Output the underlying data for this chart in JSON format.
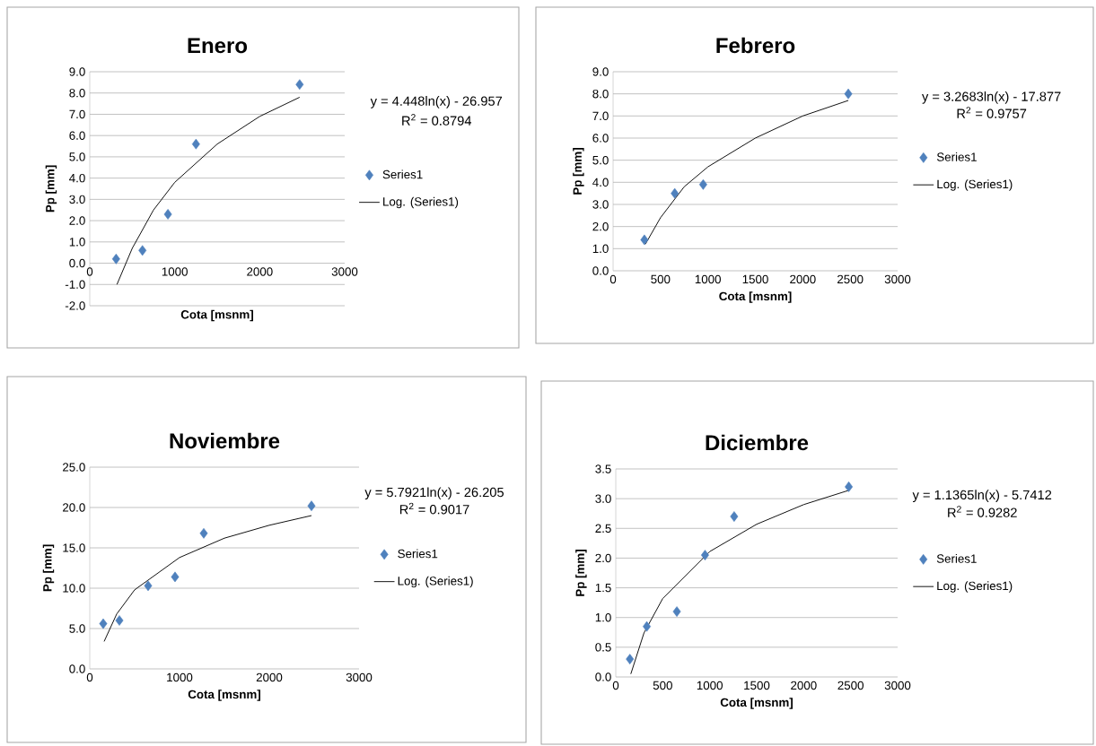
{
  "chart_data": [
    {
      "type": "scatter",
      "title": "Enero",
      "xlabel": "Cota [msnm]",
      "ylabel": "Pp [mm]",
      "xlim": [
        0,
        3000
      ],
      "ylim": [
        -2,
        9
      ],
      "xticks": [
        0,
        1000,
        2000,
        3000
      ],
      "yticks": [
        {
          "value": -2,
          "label": "-2.0"
        },
        {
          "value": -1,
          "label": "-1.0"
        },
        {
          "value": 0,
          "label": "0.0"
        },
        {
          "value": 1,
          "label": "1.0"
        },
        {
          "value": 2,
          "label": "2.0"
        },
        {
          "value": 3,
          "label": "3.0"
        },
        {
          "value": 4,
          "label": "4.0"
        },
        {
          "value": 5,
          "label": "5.0"
        },
        {
          "value": 6,
          "label": "6.0"
        },
        {
          "value": 7,
          "label": "7.0"
        },
        {
          "value": 8,
          "label": "8.0"
        },
        {
          "value": 9,
          "label": "9.0"
        }
      ],
      "grid": "y",
      "legend": "right",
      "annotations": [
        "y = 4.448ln(x) - 26.957",
        "R$^{2}$ = 0.8794"
      ],
      "series": [
        {
          "name": "Series1",
          "color": "#4f81bd",
          "marker": "diamond",
          "x": [
            310,
            620,
            920,
            1250,
            2470
          ],
          "values": [
            0.2,
            0.6,
            2.3,
            5.6,
            8.4
          ]
        },
        {
          "name": "Log. (Series1)",
          "type": "line",
          "color": "#000000",
          "marker": "none",
          "x": [
            320,
            500,
            750,
            1000,
            1500,
            2000,
            2470
          ],
          "values": [
            -1.0,
            0.7,
            2.5,
            3.8,
            5.6,
            6.9,
            7.8
          ]
        }
      ]
    },
    {
      "type": "scatter",
      "title": "Febrero",
      "xlabel": "Cota [msnm]",
      "ylabel": "Pp [mm]",
      "xlim": [
        0,
        3000
      ],
      "ylim": [
        0,
        9
      ],
      "xticks": [
        0,
        500,
        1000,
        1500,
        2000,
        2500,
        3000
      ],
      "yticks": [
        {
          "value": 0,
          "label": "0.0"
        },
        {
          "value": 1,
          "label": "1.0"
        },
        {
          "value": 2,
          "label": "2.0"
        },
        {
          "value": 3,
          "label": "3.0"
        },
        {
          "value": 4,
          "label": "4.0"
        },
        {
          "value": 5,
          "label": "5.0"
        },
        {
          "value": 6,
          "label": "6.0"
        },
        {
          "value": 7,
          "label": "7.0"
        },
        {
          "value": 8,
          "label": "8.0"
        },
        {
          "value": 9,
          "label": "9.0"
        }
      ],
      "grid": "y",
      "legend": "right",
      "annotations": [
        "y = 3.2683ln(x) - 17.877",
        "R$^{2}$ = 0.9757"
      ],
      "series": [
        {
          "name": "Series1",
          "color": "#4f81bd",
          "marker": "diamond",
          "x": [
            330,
            650,
            950,
            2480
          ],
          "values": [
            1.4,
            3.5,
            3.9,
            8.0
          ]
        },
        {
          "name": "Log. (Series1)",
          "type": "line",
          "color": "#000000",
          "marker": "none",
          "x": [
            340,
            500,
            750,
            1000,
            1500,
            2000,
            2480
          ],
          "values": [
            1.2,
            2.4,
            3.8,
            4.7,
            6.0,
            7.0,
            7.7
          ]
        }
      ]
    },
    {
      "type": "scatter",
      "title": "Noviembre",
      "xlabel": "Cota [msnm]",
      "ylabel": "Pp [mm]",
      "xlim": [
        0,
        3000
      ],
      "ylim": [
        0,
        25
      ],
      "xticks": [
        0,
        1000,
        2000,
        3000
      ],
      "yticks": [
        {
          "value": 0,
          "label": "0.0"
        },
        {
          "value": 5,
          "label": "5.0"
        },
        {
          "value": 10,
          "label": "10.0"
        },
        {
          "value": 15,
          "label": "15.0"
        },
        {
          "value": 20,
          "label": "20.0"
        },
        {
          "value": 25,
          "label": "25.0"
        }
      ],
      "grid": "y",
      "legend": "right",
      "annotations": [
        "y = 5.7921ln(x) - 26.205",
        "R$^{2}$ = 0.9017"
      ],
      "series": [
        {
          "name": "Series1",
          "color": "#4f81bd",
          "marker": "diamond",
          "x": [
            150,
            330,
            650,
            950,
            1270,
            2470
          ],
          "values": [
            5.6,
            6.0,
            10.3,
            11.4,
            16.8,
            20.2
          ]
        },
        {
          "name": "Log. (Series1)",
          "type": "line",
          "color": "#000000",
          "marker": "none",
          "x": [
            160,
            300,
            500,
            1000,
            1500,
            2000,
            2470
          ],
          "values": [
            3.4,
            6.8,
            9.8,
            13.8,
            16.2,
            17.8,
            19.0
          ]
        }
      ]
    },
    {
      "type": "scatter",
      "title": "Diciembre",
      "xlabel": "Cota [msnm]",
      "ylabel": "Pp [mm]",
      "xlim": [
        0,
        3000
      ],
      "ylim": [
        0,
        3.5
      ],
      "xticks": [
        0,
        500,
        1000,
        1500,
        2000,
        2500,
        3000
      ],
      "yticks": [
        {
          "value": 0,
          "label": "0.0"
        },
        {
          "value": 0.5,
          "label": "0.5"
        },
        {
          "value": 1,
          "label": "1.0"
        },
        {
          "value": 1.5,
          "label": "1.5"
        },
        {
          "value": 2,
          "label": "2.0"
        },
        {
          "value": 2.5,
          "label": "2.5"
        },
        {
          "value": 3,
          "label": "3.0"
        },
        {
          "value": 3.5,
          "label": "3.5"
        }
      ],
      "grid": "y",
      "legend": "right",
      "annotations": [
        "y = 1.1365ln(x) - 5.7412",
        "R$^{2}$ = 0.9282"
      ],
      "series": [
        {
          "name": "Series1",
          "color": "#4f81bd",
          "marker": "diamond",
          "x": [
            150,
            330,
            650,
            950,
            1260,
            2480
          ],
          "values": [
            0.3,
            0.85,
            1.1,
            2.05,
            2.7,
            3.2
          ]
        },
        {
          "name": "Log. (Series1)",
          "type": "line",
          "color": "#000000",
          "marker": "none",
          "x": [
            160,
            300,
            500,
            1000,
            1500,
            2000,
            2480
          ],
          "values": [
            0.05,
            0.74,
            1.32,
            2.11,
            2.57,
            2.9,
            3.14
          ]
        }
      ]
    }
  ]
}
